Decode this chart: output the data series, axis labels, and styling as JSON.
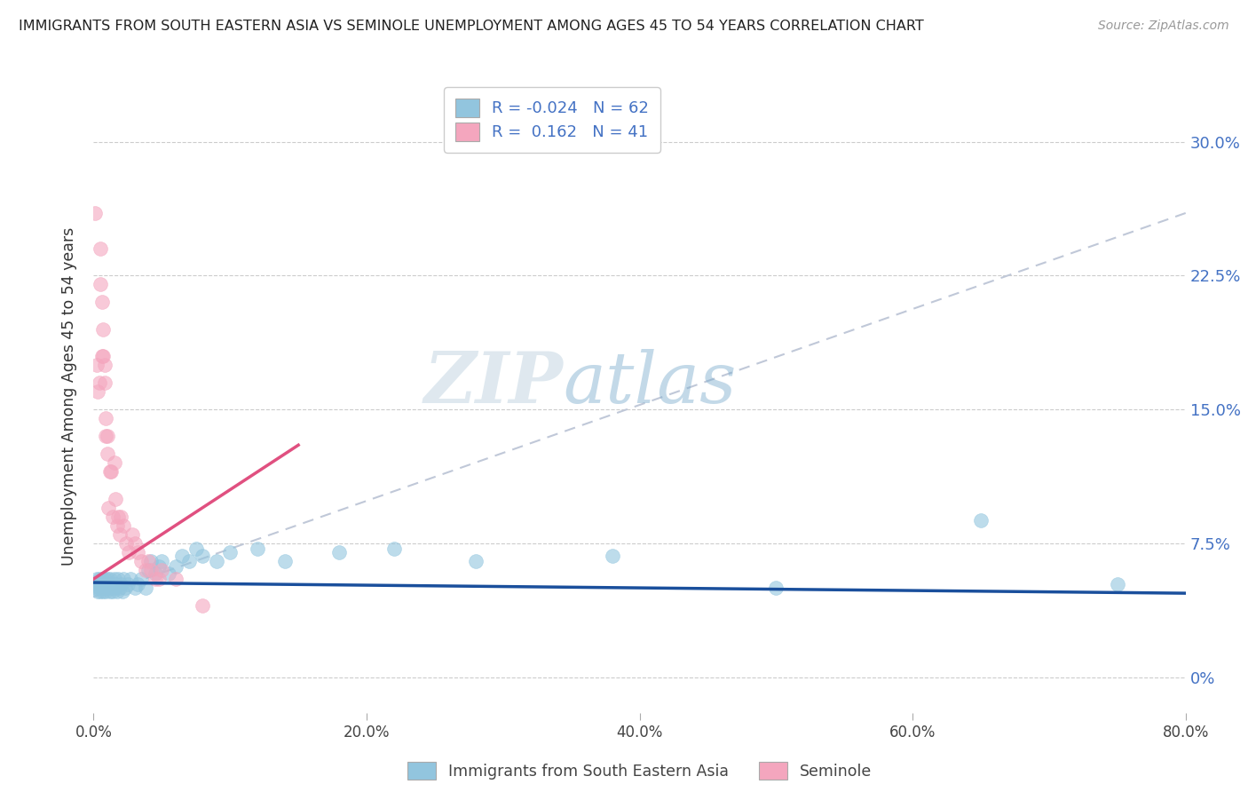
{
  "title": "IMMIGRANTS FROM SOUTH EASTERN ASIA VS SEMINOLE UNEMPLOYMENT AMONG AGES 45 TO 54 YEARS CORRELATION CHART",
  "source": "Source: ZipAtlas.com",
  "ylabel": "Unemployment Among Ages 45 to 54 years",
  "watermark_zip": "ZIP",
  "watermark_atlas": "atlas",
  "blue_color": "#92C5DE",
  "pink_color": "#F4A6BE",
  "blue_line_color": "#1A4F9C",
  "pink_line_color": "#E05080",
  "dashed_line_color": "#C0C8D8",
  "text_color": "#4472C4",
  "title_color": "#222222",
  "background_color": "#FFFFFF",
  "legend_r1": "-0.024",
  "legend_n1": "62",
  "legend_r2": "0.162",
  "legend_n2": "41",
  "xlim": [
    0.0,
    0.8
  ],
  "ylim": [
    -0.02,
    0.335
  ],
  "y_ticks": [
    0.0,
    0.075,
    0.15,
    0.225,
    0.3
  ],
  "y_labels": [
    "0%",
    "7.5%",
    "15.0%",
    "22.5%",
    "30.0%"
  ],
  "x_ticks": [
    0.0,
    0.2,
    0.4,
    0.6,
    0.8
  ],
  "x_labels": [
    "0.0%",
    "20.0%",
    "40.0%",
    "60.0%",
    "80.0%"
  ],
  "blue_x": [
    0.001,
    0.002,
    0.003,
    0.003,
    0.004,
    0.004,
    0.005,
    0.005,
    0.006,
    0.006,
    0.007,
    0.007,
    0.008,
    0.008,
    0.009,
    0.009,
    0.01,
    0.01,
    0.011,
    0.012,
    0.012,
    0.013,
    0.013,
    0.014,
    0.015,
    0.015,
    0.016,
    0.017,
    0.018,
    0.019,
    0.02,
    0.021,
    0.022,
    0.023,
    0.025,
    0.027,
    0.03,
    0.032,
    0.035,
    0.038,
    0.04,
    0.042,
    0.045,
    0.048,
    0.05,
    0.055,
    0.06,
    0.065,
    0.07,
    0.075,
    0.08,
    0.09,
    0.1,
    0.12,
    0.14,
    0.18,
    0.22,
    0.28,
    0.38,
    0.5,
    0.65,
    0.75
  ],
  "blue_y": [
    0.05,
    0.055,
    0.048,
    0.052,
    0.05,
    0.055,
    0.052,
    0.048,
    0.05,
    0.055,
    0.048,
    0.052,
    0.055,
    0.05,
    0.048,
    0.052,
    0.05,
    0.055,
    0.052,
    0.048,
    0.055,
    0.05,
    0.052,
    0.048,
    0.055,
    0.05,
    0.052,
    0.048,
    0.055,
    0.05,
    0.052,
    0.048,
    0.055,
    0.05,
    0.052,
    0.055,
    0.05,
    0.052,
    0.055,
    0.05,
    0.06,
    0.065,
    0.058,
    0.062,
    0.065,
    0.058,
    0.062,
    0.068,
    0.065,
    0.072,
    0.068,
    0.065,
    0.07,
    0.072,
    0.065,
    0.07,
    0.072,
    0.065,
    0.068,
    0.05,
    0.088,
    0.052
  ],
  "pink_x": [
    0.001,
    0.002,
    0.003,
    0.004,
    0.005,
    0.005,
    0.006,
    0.006,
    0.007,
    0.007,
    0.008,
    0.008,
    0.009,
    0.009,
    0.01,
    0.01,
    0.011,
    0.012,
    0.013,
    0.014,
    0.015,
    0.016,
    0.017,
    0.018,
    0.019,
    0.02,
    0.022,
    0.024,
    0.026,
    0.028,
    0.03,
    0.032,
    0.035,
    0.038,
    0.04,
    0.042,
    0.045,
    0.048,
    0.05,
    0.06,
    0.08
  ],
  "pink_y": [
    0.26,
    0.175,
    0.16,
    0.165,
    0.24,
    0.22,
    0.18,
    0.21,
    0.18,
    0.195,
    0.165,
    0.175,
    0.145,
    0.135,
    0.125,
    0.135,
    0.095,
    0.115,
    0.115,
    0.09,
    0.12,
    0.1,
    0.085,
    0.09,
    0.08,
    0.09,
    0.085,
    0.075,
    0.07,
    0.08,
    0.075,
    0.07,
    0.065,
    0.06,
    0.065,
    0.06,
    0.055,
    0.055,
    0.06,
    0.055,
    0.04
  ],
  "pink_line_x0": 0.0,
  "pink_line_x1": 0.15,
  "pink_line_y0": 0.055,
  "pink_line_y1": 0.13,
  "blue_line_x0": 0.0,
  "blue_line_x1": 0.8,
  "blue_line_y0": 0.053,
  "blue_line_y1": 0.047,
  "dash_line_x0": 0.0,
  "dash_line_x1": 0.8,
  "dash_line_y0": 0.045,
  "dash_line_y1": 0.26
}
